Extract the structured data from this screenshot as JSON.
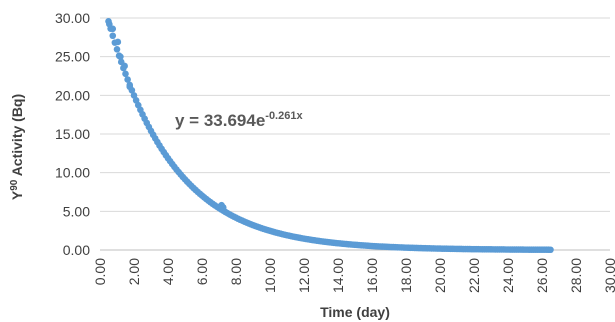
{
  "chart_data": {
    "type": "scatter",
    "title": "",
    "xlabel": "Time (day)",
    "ylabel_parts": {
      "pre": "Y",
      "sup": "90",
      "post": " Activity (Bq)"
    },
    "xlim": [
      0,
      30
    ],
    "ylim": [
      0,
      30
    ],
    "x_ticks": [
      "0.00",
      "2.00",
      "4.00",
      "6.00",
      "8.00",
      "10.00",
      "12.00",
      "14.00",
      "16.00",
      "18.00",
      "20.00",
      "22.00",
      "24.00",
      "26.00",
      "28.00",
      "30.00"
    ],
    "y_ticks": [
      "0.00",
      "5.00",
      "10.00",
      "15.00",
      "20.00",
      "25.00",
      "30.00"
    ],
    "grid": {
      "horizontal": true,
      "vertical": false
    },
    "legend": "none",
    "marker_color": "#5B9BD5",
    "equation": {
      "base": "y = 33.694e",
      "exponent": "-0.261x"
    },
    "fit": {
      "a": 33.694,
      "b": -0.261
    },
    "series": [
      {
        "x_start": 0.5,
        "x_end": 26.5,
        "step": 0.125,
        "extra_points": [
          {
            "x": 0.55,
            "y": 29.2
          },
          {
            "x": 0.75,
            "y": 28.6
          },
          {
            "x": 1.05,
            "y": 26.9
          },
          {
            "x": 1.2,
            "y": 25.0
          },
          {
            "x": 1.45,
            "y": 23.8
          },
          {
            "x": 1.75,
            "y": 21.1
          },
          {
            "x": 7.15,
            "y": 5.8
          },
          {
            "x": 7.25,
            "y": 5.5
          }
        ]
      }
    ]
  }
}
